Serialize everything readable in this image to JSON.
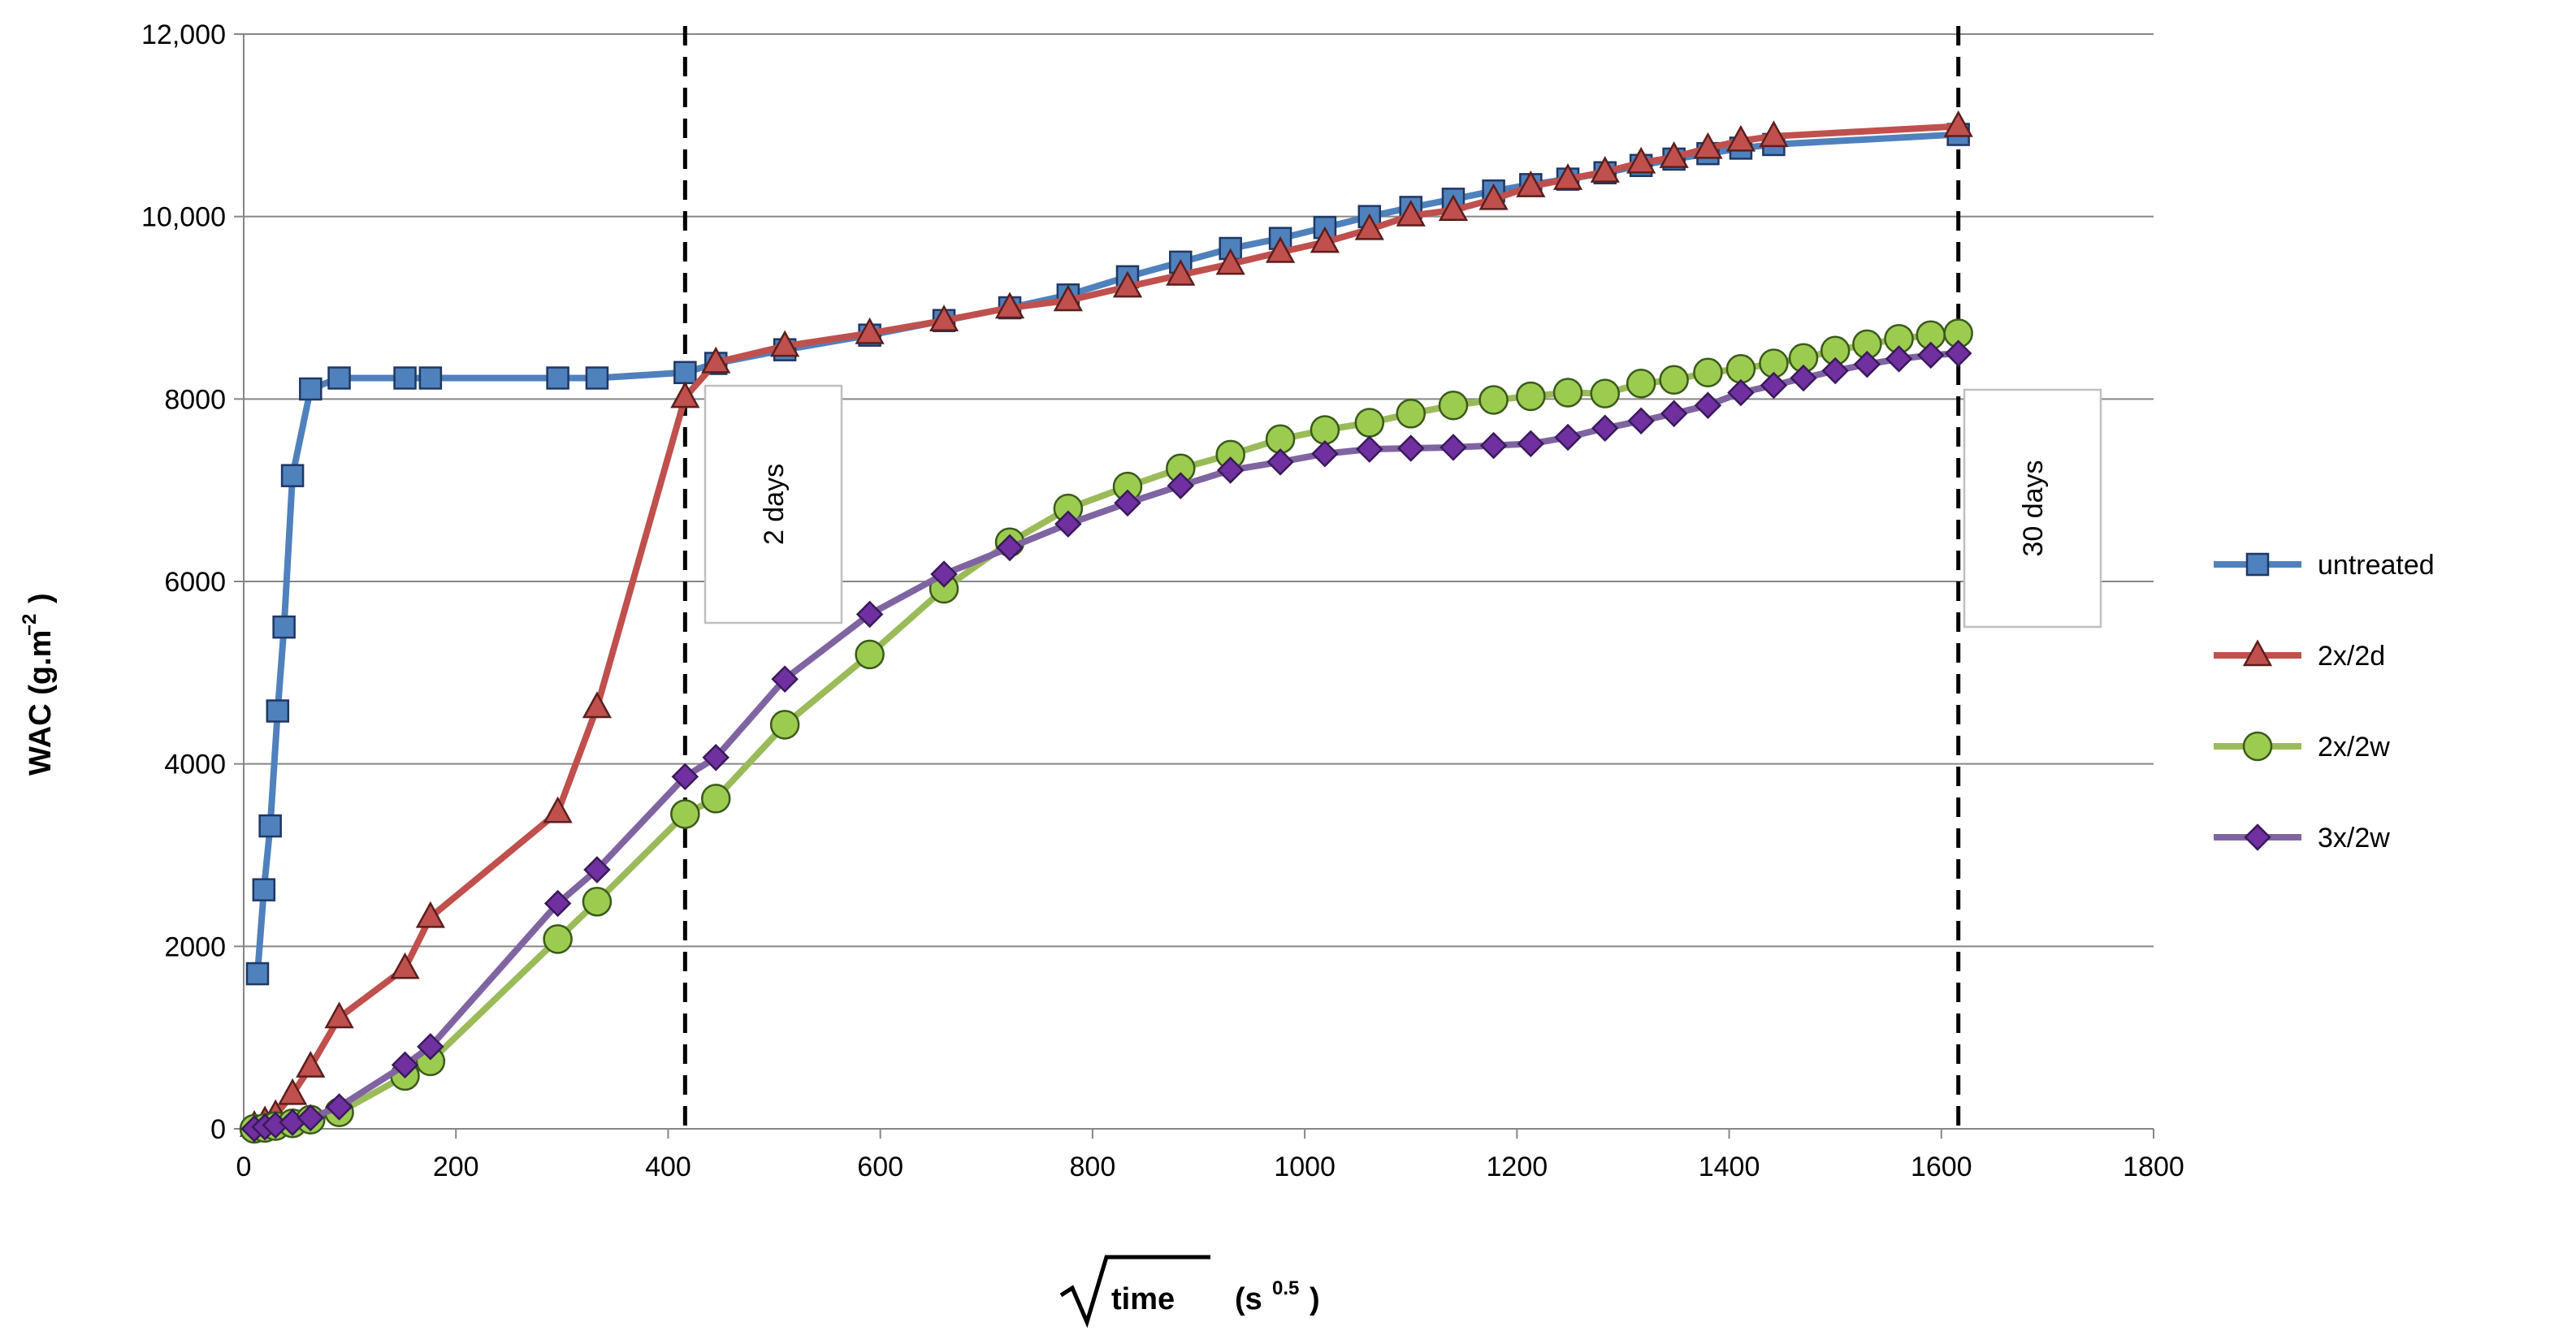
{
  "chart_data": {
    "type": "line",
    "title": "",
    "xlabel": "time",
    "xlabel_unit": "(s",
    "xlabel_unit_exp": "0.5",
    "xlabel_unit_close": ")",
    "ylabel": "WAC (g.m",
    "ylabel_exp": "−2",
    "ylabel_close": ")",
    "xlim": [
      0,
      1800
    ],
    "ylim": [
      0,
      12000
    ],
    "x_ticks": [
      0,
      200,
      400,
      600,
      800,
      1000,
      1200,
      1400,
      1600,
      1800
    ],
    "x_tick_labels": [
      "0",
      "200",
      "400",
      "600",
      "800",
      "1000",
      "1200",
      "1400",
      "1600",
      "1800"
    ],
    "y_ticks": [
      0,
      2000,
      4000,
      6000,
      8000,
      10000,
      12000
    ],
    "y_tick_labels": [
      "0",
      "2000",
      "4000",
      "6000",
      "8000",
      "10,000",
      "12,000"
    ],
    "grid": "horizontal",
    "legend_position": "right",
    "annotations": [
      {
        "x": 416,
        "label": "2 days",
        "y_top": 8500,
        "y_bottom": 5470
      },
      {
        "x": 1616,
        "label": "30 days",
        "y_top": 8450,
        "y_bottom": 5420
      }
    ],
    "series": [
      {
        "name": "untreated",
        "color": "#4F81BD",
        "marker_fill": "#4F81BD",
        "marker": "square",
        "x": [
          13,
          19,
          25,
          32,
          38,
          46,
          63,
          90,
          152,
          176,
          296,
          333,
          416,
          445,
          510,
          590,
          660,
          722,
          777,
          833,
          883,
          930,
          977,
          1019,
          1061,
          1100,
          1140,
          1178,
          1213,
          1248,
          1283,
          1317,
          1348,
          1380,
          1411,
          1442,
          1616
        ],
        "values": [
          1700,
          2620,
          3320,
          4580,
          5500,
          7160,
          8110,
          8230,
          8230,
          8230,
          8230,
          8230,
          8290,
          8390,
          8540,
          8700,
          8860,
          9000,
          9140,
          9340,
          9500,
          9650,
          9760,
          9880,
          10000,
          10100,
          10190,
          10280,
          10350,
          10410,
          10480,
          10560,
          10630,
          10690,
          10750,
          10790,
          10900
        ]
      },
      {
        "name": "2x/2d",
        "color": "#C0504D",
        "marker_fill": "#C0504D",
        "marker": "triangle",
        "x": [
          10,
          20,
          30,
          46,
          63,
          90,
          152,
          176,
          296,
          333,
          416,
          445,
          510,
          590,
          660,
          722,
          777,
          833,
          883,
          930,
          977,
          1019,
          1061,
          1100,
          1140,
          1178,
          1213,
          1248,
          1283,
          1317,
          1348,
          1380,
          1411,
          1442,
          1616
        ],
        "values": [
          30,
          80,
          150,
          380,
          680,
          1220,
          1760,
          2320,
          3470,
          4620,
          8020,
          8400,
          8580,
          8720,
          8860,
          9000,
          9080,
          9230,
          9360,
          9480,
          9610,
          9720,
          9860,
          10010,
          10070,
          10190,
          10330,
          10410,
          10490,
          10590,
          10650,
          10750,
          10830,
          10880,
          10990
        ]
      },
      {
        "name": "2x/2w",
        "color": "#9BBB59",
        "marker_fill": "#9BCC50",
        "marker": "circle",
        "x": [
          10,
          20,
          30,
          46,
          63,
          90,
          152,
          176,
          296,
          333,
          416,
          445,
          510,
          590,
          660,
          722,
          777,
          833,
          883,
          930,
          977,
          1019,
          1061,
          1100,
          1140,
          1178,
          1213,
          1248,
          1283,
          1317,
          1348,
          1380,
          1411,
          1442,
          1470,
          1500,
          1530,
          1560,
          1590,
          1616
        ],
        "values": [
          0,
          10,
          30,
          60,
          100,
          180,
          580,
          740,
          2080,
          2490,
          3450,
          3620,
          4430,
          5200,
          5920,
          6430,
          6800,
          7040,
          7240,
          7390,
          7560,
          7660,
          7740,
          7840,
          7930,
          7990,
          8030,
          8070,
          8060,
          8170,
          8210,
          8290,
          8330,
          8390,
          8450,
          8530,
          8600,
          8660,
          8700,
          8720
        ]
      },
      {
        "name": "3x/2w",
        "color": "#8064A2",
        "marker_fill": "#7030A0",
        "marker": "diamond",
        "x": [
          10,
          20,
          30,
          46,
          63,
          90,
          152,
          176,
          296,
          333,
          416,
          445,
          510,
          590,
          660,
          722,
          777,
          833,
          883,
          930,
          977,
          1019,
          1061,
          1100,
          1140,
          1178,
          1213,
          1248,
          1283,
          1317,
          1348,
          1380,
          1411,
          1442,
          1470,
          1500,
          1530,
          1560,
          1590,
          1616
        ],
        "values": [
          0,
          20,
          40,
          70,
          120,
          240,
          700,
          900,
          2470,
          2840,
          3860,
          4070,
          4930,
          5640,
          6080,
          6370,
          6630,
          6860,
          7050,
          7220,
          7310,
          7400,
          7450,
          7460,
          7470,
          7490,
          7510,
          7580,
          7680,
          7760,
          7840,
          7930,
          8070,
          8150,
          8230,
          8310,
          8380,
          8440,
          8480,
          8500
        ]
      }
    ]
  }
}
